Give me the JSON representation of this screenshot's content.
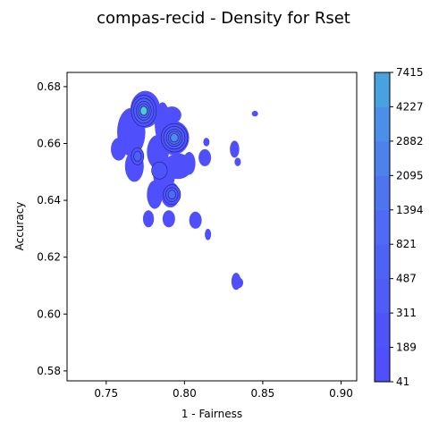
{
  "chart_data": {
    "type": "heatmap",
    "title": "compas-recid - Density for Rset",
    "xlabel": "1 - Fairness",
    "ylabel": "Accuracy",
    "xlim": [
      0.725,
      0.91
    ],
    "ylim": [
      0.5765,
      0.685
    ],
    "xticks": [
      "0.75",
      "0.80",
      "0.85",
      "0.90"
    ],
    "xtick_values": [
      0.75,
      0.8,
      0.85,
      0.9
    ],
    "yticks": [
      "0.58",
      "0.60",
      "0.62",
      "0.64",
      "0.66",
      "0.68"
    ],
    "ytick_values": [
      0.58,
      0.6,
      0.62,
      0.64,
      0.66,
      0.68
    ],
    "colorbar": {
      "levels": [
        "41",
        "189",
        "311",
        "487",
        "821",
        "1394",
        "2095",
        "2882",
        "4227",
        "7415"
      ],
      "colors": [
        "#4f4ffb",
        "#4f53fa",
        "#4f5cf8",
        "#4f62f6",
        "#4f6af4",
        "#4f74f0",
        "#4d82ec",
        "#4b8fe8",
        "#48a2e0",
        "#49d2c0"
      ]
    },
    "density_peaks": [
      {
        "x": 0.774,
        "y": 0.6715,
        "level": "7415"
      },
      {
        "x": 0.7935,
        "y": 0.662,
        "level": "2882"
      },
      {
        "x": 0.792,
        "y": 0.642,
        "level": "821"
      },
      {
        "x": 0.77,
        "y": 0.6555,
        "level": "487"
      },
      {
        "x": 0.834,
        "y": 0.611,
        "level": "41"
      }
    ],
    "grid": false,
    "legend": "colorbar-right"
  }
}
